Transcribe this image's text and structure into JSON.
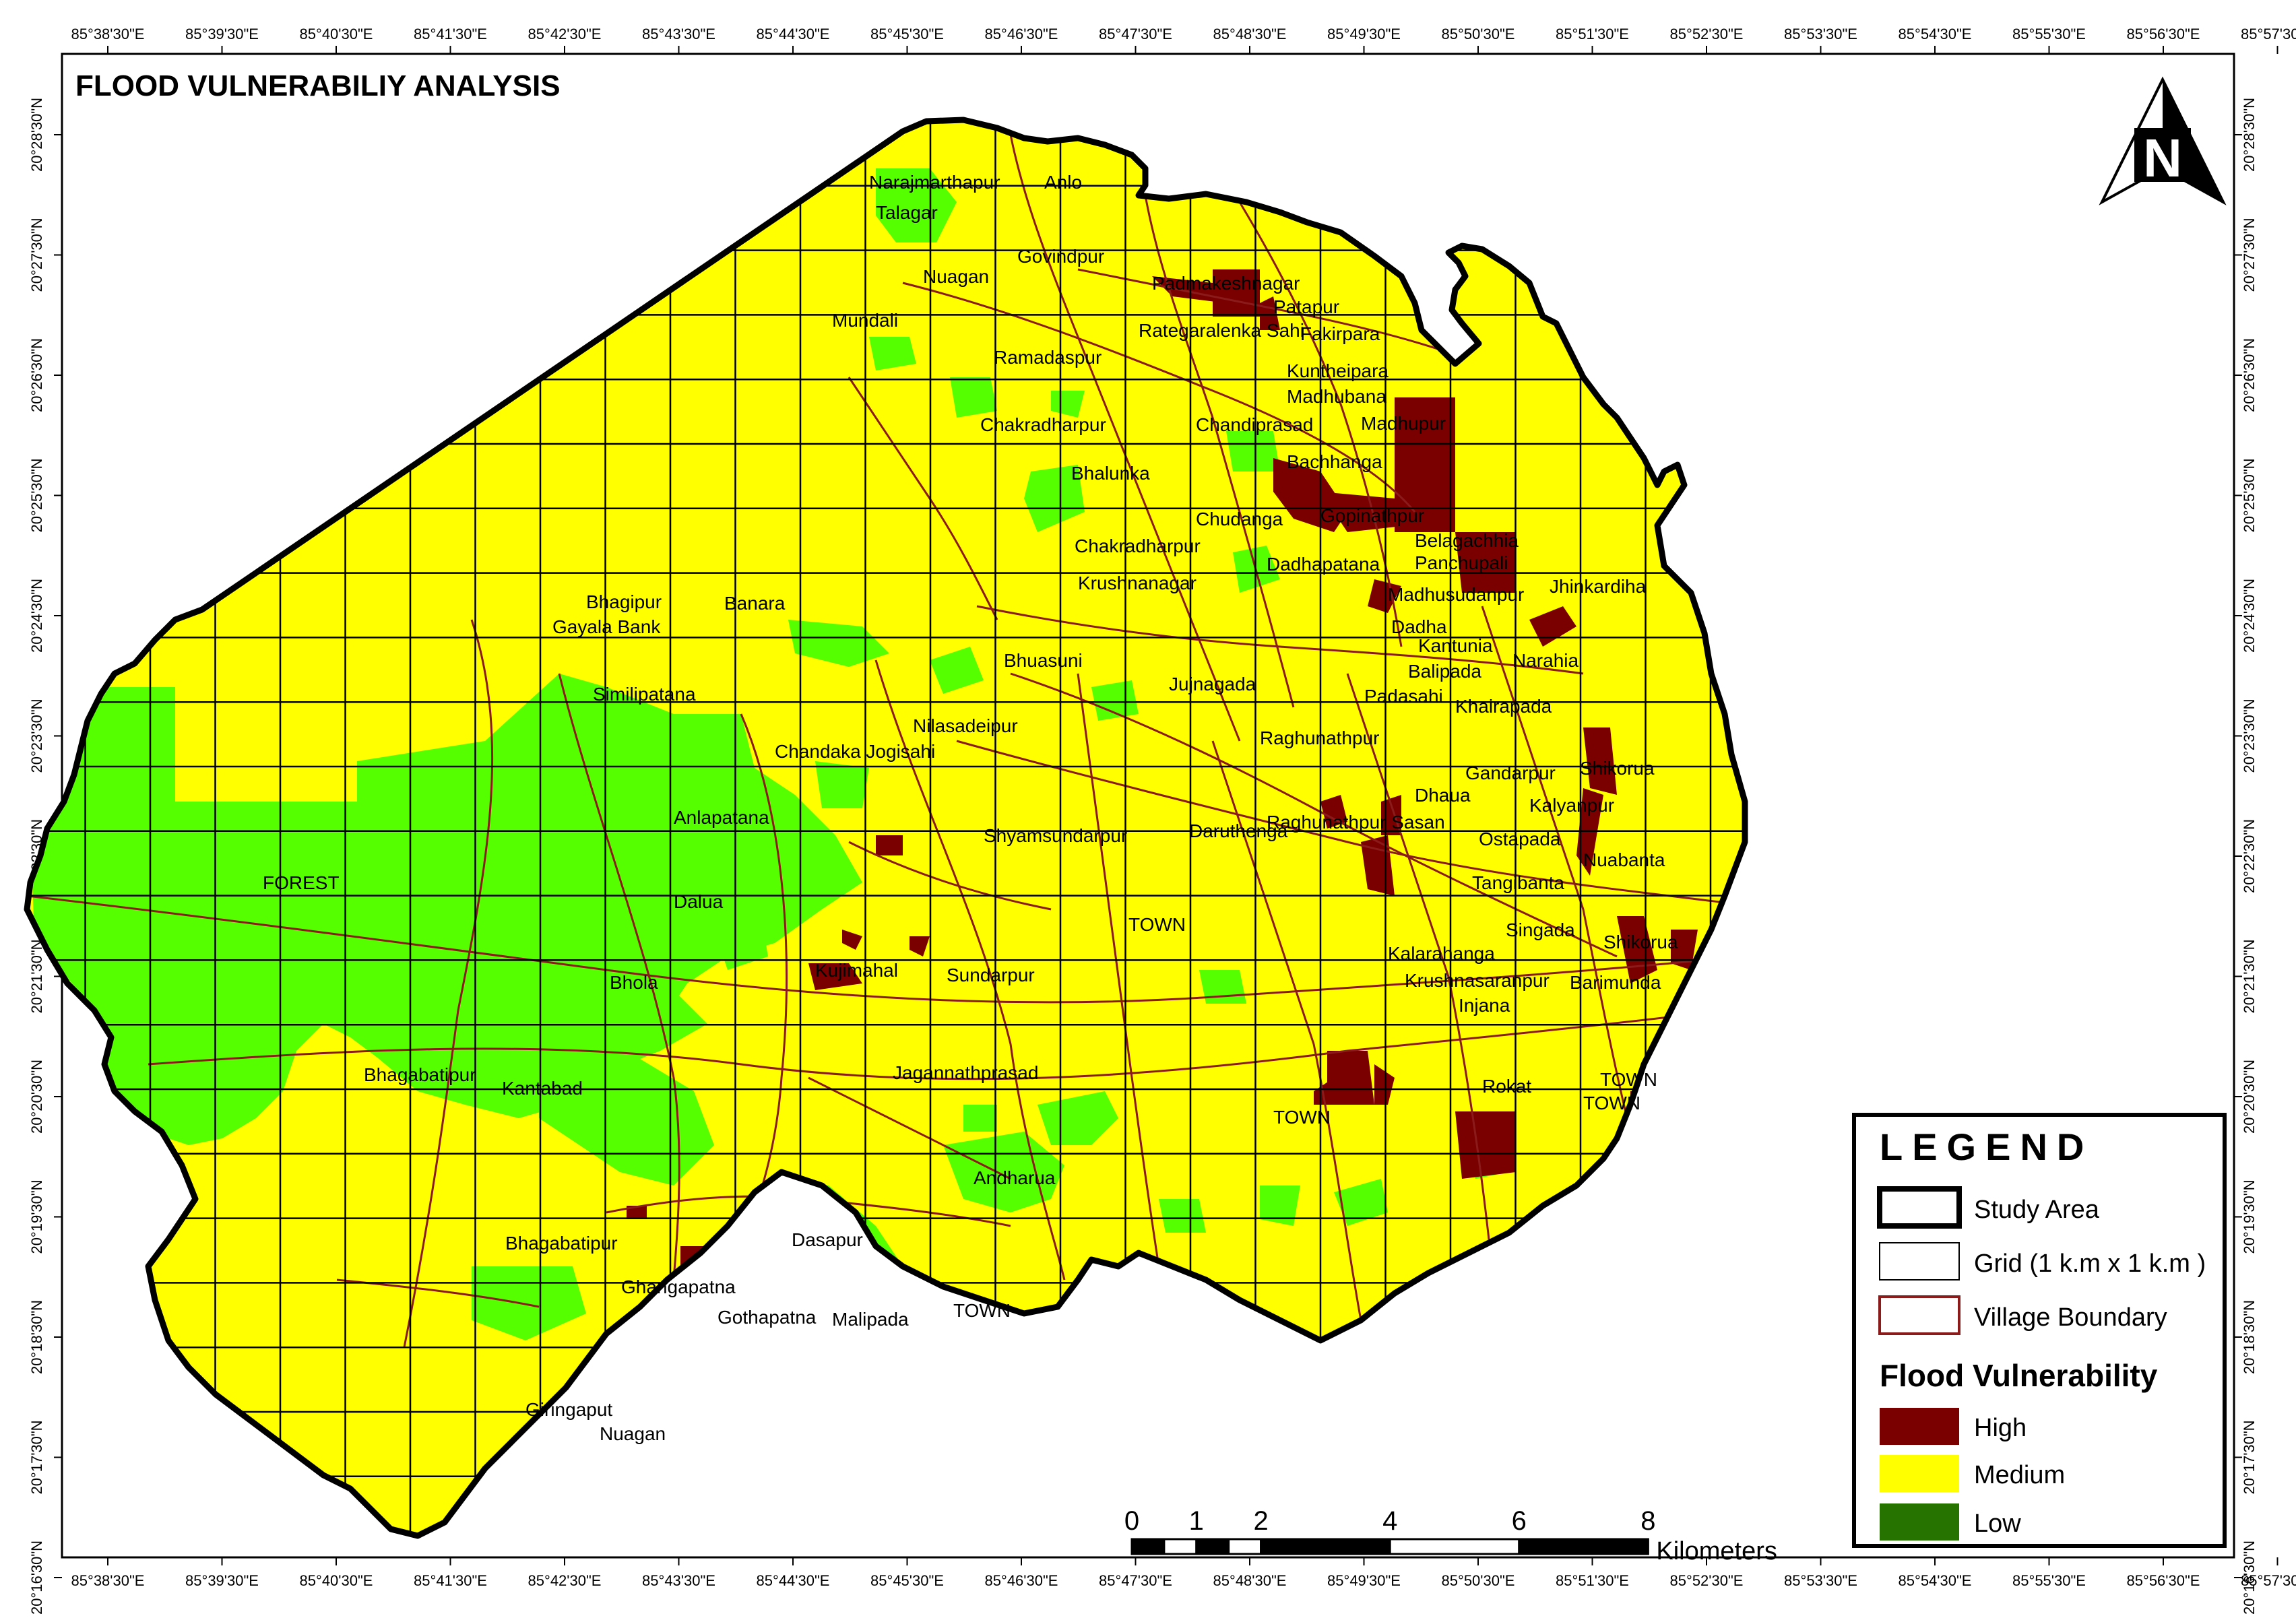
{
  "title": "FLOOD VULNERABILIY ANALYSIS",
  "north_arrow": {
    "letter": "N",
    "icon": "north-arrow-icon"
  },
  "longitude_labels": [
    "85°38'30\"E",
    "85°39'30\"E",
    "85°40'30\"E",
    "85°41'30\"E",
    "85°42'30\"E",
    "85°43'30\"E",
    "85°44'30\"E",
    "85°45'30\"E",
    "85°46'30\"E",
    "85°47'30\"E",
    "85°48'30\"E",
    "85°49'30\"E",
    "85°50'30\"E",
    "85°51'30\"E",
    "85°52'30\"E",
    "85°53'30\"E",
    "85°54'30\"E",
    "85°55'30\"E",
    "85°56'30\"E",
    "85°57'30\"E"
  ],
  "latitude_labels": [
    "20°28'30\"N",
    "20°27'30\"N",
    "20°26'30\"N",
    "20°25'30\"N",
    "20°24'30\"N",
    "20°23'30\"N",
    "20°22'30\"N",
    "20°21'30\"N",
    "20°20'30\"N",
    "20°19'30\"N",
    "20°18'30\"N",
    "20°17'30\"N",
    "20°16'30\"N"
  ],
  "villages": [
    "Narajmarthapur",
    "Anlo",
    "Talagar",
    "Nuagan",
    "Govindpur",
    "Mundali",
    "Padmakeshnagar",
    "Patapur",
    "Rategaralenka Sahi",
    "Fakirpara",
    "Ramadaspur",
    "Kuntheipara",
    "Madhubana",
    "Chakradharpur",
    "Chandiprasad",
    "Madhupur",
    "Bhalunka",
    "Bachhanga",
    "Chudanga",
    "Gopinathpur",
    "Belagachhia",
    "Panchupali",
    "Chakradharpur",
    "Dadhapatana",
    "Krushnanagar",
    "Madhusudanpur",
    "Jhinkardiha",
    "Bhagipur",
    "Banara",
    "Gayala Bank",
    "Dadha",
    "Kantunia",
    "Narahia",
    "Bhuasuni",
    "Balipada",
    "Similipatana",
    "Jujnagada",
    "Padasahi",
    "Khairapada",
    "Nilasadeipur",
    "Chandaka Jogisahi",
    "Raghunathpur",
    "Gandarpur",
    "Shikorua",
    "Dhaua",
    "Kalyanpur",
    "Anlapatana",
    "Shyamsundarpur",
    "Daruthenga",
    "Raghunathpur Sasan",
    "Ostapada",
    "Nuabanta",
    "FOREST",
    "Tangibanta",
    "Dalua",
    "TOWN",
    "Singada",
    "Shikorua",
    "Kujimahal",
    "Sundarpur",
    "Kalarahanga",
    "Bhola",
    "Krushnasaranpur",
    "Barimunda",
    "Injana",
    "Bhagabatipur",
    "Kantabad",
    "Jagannathprasad",
    "Rokat",
    "TOWN",
    "TOWN",
    "TOWN",
    "Andharua",
    "Bhagabatipur",
    "Dasapur",
    "Ghangapatna",
    "Gothapatna",
    "Malipada",
    "TOWN",
    "Giringaput",
    "Nuagan"
  ],
  "legend": {
    "title": "LEGEND",
    "items": [
      {
        "label": "Study Area",
        "kind": "study-area"
      },
      {
        "label": "Grid (1 k.m x 1 k.m )",
        "kind": "grid"
      },
      {
        "label": "Village Boundary",
        "kind": "village-boundary"
      }
    ],
    "vulnerability_title": "Flood Vulnerability",
    "classes": [
      {
        "label": "High",
        "color": "#7a0000"
      },
      {
        "label": "Medium",
        "color": "#ffff00"
      },
      {
        "label": "Low",
        "color": "#267300"
      }
    ]
  },
  "scale_bar": {
    "ticks": [
      "0",
      "1",
      "2",
      "4",
      "6",
      "8"
    ],
    "unit": "Kilometers"
  },
  "colors": {
    "medium": "#ffff00",
    "low_map": "#55ff00",
    "high": "#7a0000",
    "village_boundary": "#8b1a1a",
    "grid": "#000000"
  }
}
